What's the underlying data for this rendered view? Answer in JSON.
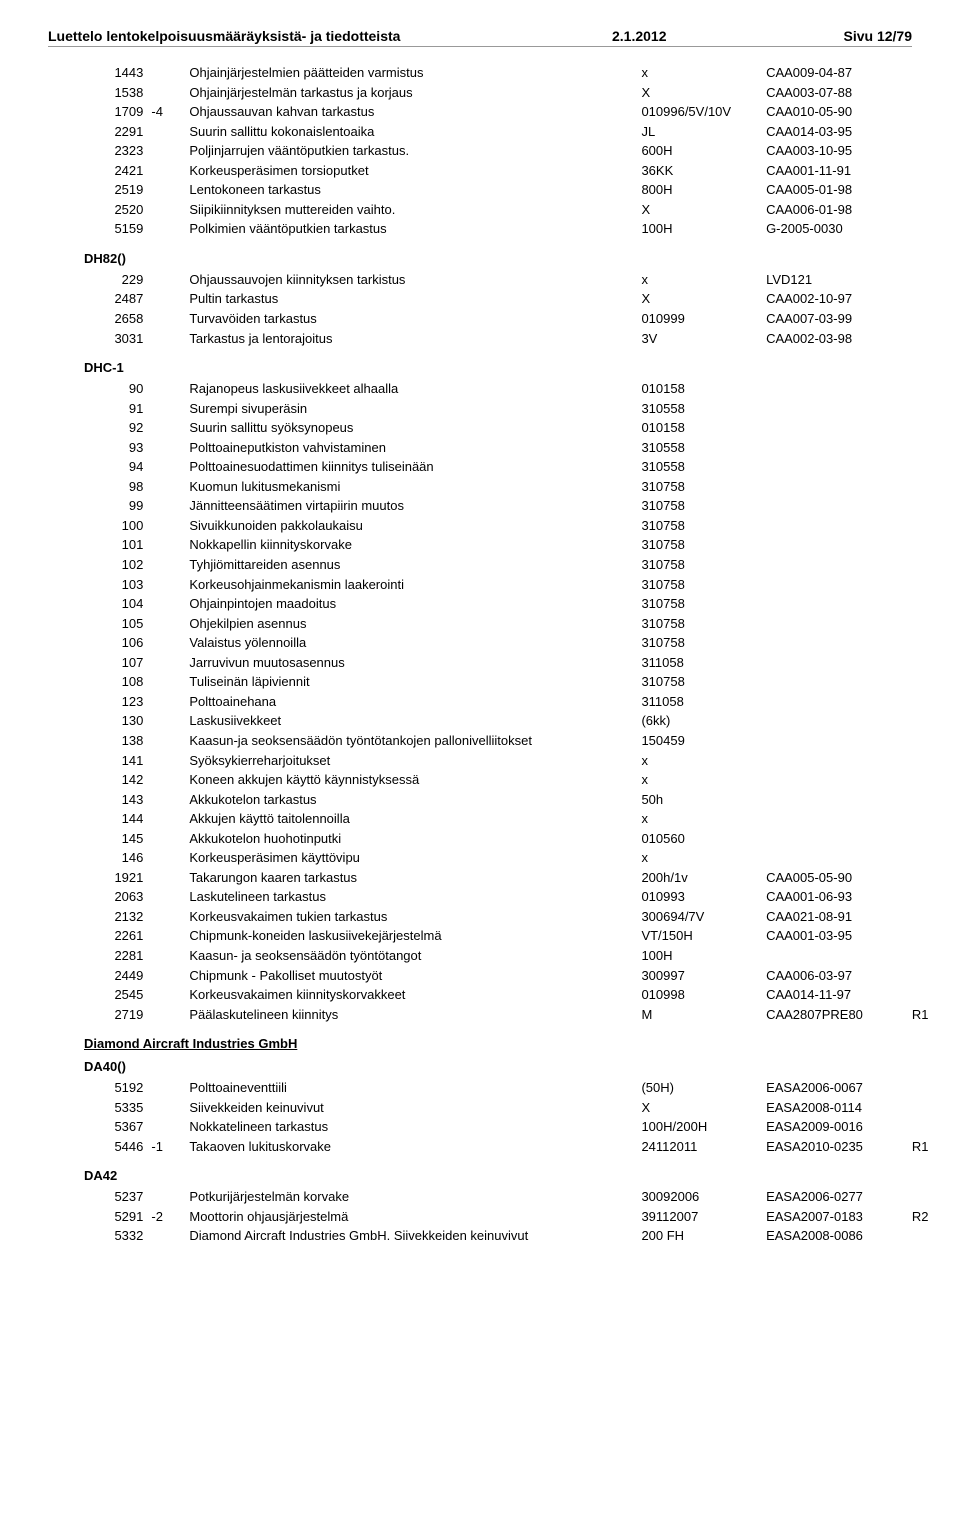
{
  "header": {
    "title": "Luettelo lentokelpoisuusmääräyksistä- ja tiedotteista",
    "date": "2.1.2012",
    "page": "Sivu 12/79"
  },
  "sections": [
    {
      "heading": null,
      "rows": [
        {
          "num": "1443",
          "rev": "",
          "desc": "Ohjainjärjestelmien päätteiden varmistus",
          "val": "x",
          "ref": "CAA009-04-87",
          "note": ""
        },
        {
          "num": "1538",
          "rev": "",
          "desc": "Ohjainjärjestelmän tarkastus ja korjaus",
          "val": "X",
          "ref": "CAA003-07-88",
          "note": ""
        },
        {
          "num": "1709",
          "rev": "-4",
          "desc": "Ohjaussauvan kahvan tarkastus",
          "val": "010996/5V/10V",
          "ref": "CAA010-05-90",
          "note": ""
        },
        {
          "num": "2291",
          "rev": "",
          "desc": "Suurin sallittu kokonaislentoaika",
          "val": "JL",
          "ref": "CAA014-03-95",
          "note": ""
        },
        {
          "num": "2323",
          "rev": "",
          "desc": "Poljinjarrujen vääntöputkien tarkastus.",
          "val": "600H",
          "ref": "CAA003-10-95",
          "note": ""
        },
        {
          "num": "2421",
          "rev": "",
          "desc": "Korkeusperäsimen torsioputket",
          "val": "36KK",
          "ref": "CAA001-11-91",
          "note": ""
        },
        {
          "num": "2519",
          "rev": "",
          "desc": "Lentokoneen tarkastus",
          "val": "800H",
          "ref": "CAA005-01-98",
          "note": ""
        },
        {
          "num": "2520",
          "rev": "",
          "desc": "Siipikiinnityksen muttereiden vaihto.",
          "val": "X",
          "ref": "CAA006-01-98",
          "note": ""
        },
        {
          "num": "5159",
          "rev": "",
          "desc": "Polkimien vääntöputkien tarkastus",
          "val": "100H",
          "ref": "G-2005-0030",
          "note": ""
        }
      ]
    },
    {
      "heading": "DH82()",
      "rows": [
        {
          "num": "229",
          "rev": "",
          "desc": "Ohjaussauvojen kiinnityksen tarkistus",
          "val": "x",
          "ref": "LVD121",
          "note": ""
        },
        {
          "num": "2487",
          "rev": "",
          "desc": "Pultin tarkastus",
          "val": "X",
          "ref": "CAA002-10-97",
          "note": ""
        },
        {
          "num": "2658",
          "rev": "",
          "desc": "Turvavöiden tarkastus",
          "val": "010999",
          "ref": "CAA007-03-99",
          "note": ""
        },
        {
          "num": "3031",
          "rev": "",
          "desc": "Tarkastus ja lentorajoitus",
          "val": "3V",
          "ref": "CAA002-03-98",
          "note": ""
        }
      ]
    },
    {
      "heading": "DHC-1",
      "rows": [
        {
          "num": "90",
          "rev": "",
          "desc": "Rajanopeus laskusiivekkeet alhaalla",
          "val": "010158",
          "ref": "",
          "note": ""
        },
        {
          "num": "91",
          "rev": "",
          "desc": "Surempi sivuperäsin",
          "val": "310558",
          "ref": "",
          "note": ""
        },
        {
          "num": "92",
          "rev": "",
          "desc": "Suurin sallittu syöksynopeus",
          "val": "010158",
          "ref": "",
          "note": ""
        },
        {
          "num": "93",
          "rev": "",
          "desc": "Polttoaineputkiston vahvistaminen",
          "val": "310558",
          "ref": "",
          "note": ""
        },
        {
          "num": "94",
          "rev": "",
          "desc": "Polttoainesuodattimen kiinnitys tuliseinään",
          "val": "310558",
          "ref": "",
          "note": ""
        },
        {
          "num": "98",
          "rev": "",
          "desc": "Kuomun lukitusmekanismi",
          "val": "310758",
          "ref": "",
          "note": ""
        },
        {
          "num": "99",
          "rev": "",
          "desc": "Jännitteensäätimen virtapiirin muutos",
          "val": "310758",
          "ref": "",
          "note": ""
        },
        {
          "num": "100",
          "rev": "",
          "desc": "Sivuikkunoiden pakkolaukaisu",
          "val": "310758",
          "ref": "",
          "note": ""
        },
        {
          "num": "101",
          "rev": "",
          "desc": "Nokkapellin kiinnityskorvake",
          "val": "310758",
          "ref": "",
          "note": ""
        },
        {
          "num": "102",
          "rev": "",
          "desc": "Tyhjiömittareiden asennus",
          "val": "310758",
          "ref": "",
          "note": ""
        },
        {
          "num": "103",
          "rev": "",
          "desc": "Korkeusohjainmekanismin laakerointi",
          "val": "310758",
          "ref": "",
          "note": ""
        },
        {
          "num": "104",
          "rev": "",
          "desc": "Ohjainpintojen maadoitus",
          "val": "310758",
          "ref": "",
          "note": ""
        },
        {
          "num": "105",
          "rev": "",
          "desc": "Ohjekilpien asennus",
          "val": "310758",
          "ref": "",
          "note": ""
        },
        {
          "num": "106",
          "rev": "",
          "desc": "Valaistus yölennoilla",
          "val": "310758",
          "ref": "",
          "note": ""
        },
        {
          "num": "107",
          "rev": "",
          "desc": "Jarruvivun muutosasennus",
          "val": "311058",
          "ref": "",
          "note": ""
        },
        {
          "num": "108",
          "rev": "",
          "desc": "Tuliseinän läpiviennit",
          "val": "310758",
          "ref": "",
          "note": ""
        },
        {
          "num": "123",
          "rev": "",
          "desc": "Polttoainehana",
          "val": "311058",
          "ref": "",
          "note": ""
        },
        {
          "num": "130",
          "rev": "",
          "desc": "Laskusiivekkeet",
          "val": "(6kk)",
          "ref": "",
          "note": ""
        },
        {
          "num": "138",
          "rev": "",
          "desc": "Kaasun-ja seoksensäädön työntötankojen pallonivelliitokset",
          "val": "150459",
          "ref": "",
          "note": ""
        },
        {
          "num": "141",
          "rev": "",
          "desc": "Syöksykierreharjoitukset",
          "val": "x",
          "ref": "",
          "note": ""
        },
        {
          "num": "142",
          "rev": "",
          "desc": "Koneen akkujen käyttö käynnistyksessä",
          "val": "x",
          "ref": "",
          "note": ""
        },
        {
          "num": "143",
          "rev": "",
          "desc": "Akkukotelon tarkastus",
          "val": "50h",
          "ref": "",
          "note": ""
        },
        {
          "num": "144",
          "rev": "",
          "desc": "Akkujen käyttö taitolennoilla",
          "val": "x",
          "ref": "",
          "note": ""
        },
        {
          "num": "145",
          "rev": "",
          "desc": "Akkukotelon huohotinputki",
          "val": "010560",
          "ref": "",
          "note": ""
        },
        {
          "num": "146",
          "rev": "",
          "desc": "Korkeusperäsimen käyttövipu",
          "val": "x",
          "ref": "",
          "note": ""
        },
        {
          "num": "1921",
          "rev": "",
          "desc": "Takarungon kaaren tarkastus",
          "val": "200h/1v",
          "ref": "CAA005-05-90",
          "note": ""
        },
        {
          "num": "2063",
          "rev": "",
          "desc": "Laskutelineen tarkastus",
          "val": "010993",
          "ref": "CAA001-06-93",
          "note": ""
        },
        {
          "num": "2132",
          "rev": "",
          "desc": "Korkeusvakaimen tukien tarkastus",
          "val": "300694/7V",
          "ref": "CAA021-08-91",
          "note": ""
        },
        {
          "num": "2261",
          "rev": "",
          "desc": "Chipmunk-koneiden laskusiivekejärjestelmä",
          "val": "VT/150H",
          "ref": "CAA001-03-95",
          "note": ""
        },
        {
          "num": "2281",
          "rev": "",
          "desc": "Kaasun- ja seoksensäädön työntötangot",
          "val": "100H",
          "ref": "",
          "note": ""
        },
        {
          "num": "2449",
          "rev": "",
          "desc": "Chipmunk - Pakolliset muutostyöt",
          "val": "300997",
          "ref": "CAA006-03-97",
          "note": ""
        },
        {
          "num": "2545",
          "rev": "",
          "desc": "Korkeusvakaimen kiinnityskorvakkeet",
          "val": "010998",
          "ref": "CAA014-11-97",
          "note": ""
        },
        {
          "num": "2719",
          "rev": "",
          "desc": "Päälaskutelineen kiinnitys",
          "val": "M",
          "ref": "CAA2807PRE80",
          "note": "R1"
        }
      ]
    },
    {
      "heading": "Diamond Aircraft Industries GmbH",
      "underline": true,
      "rows": []
    },
    {
      "heading": "DA40()",
      "rows": [
        {
          "num": "5192",
          "rev": "",
          "desc": "Polttoaineventtiili",
          "val": "(50H)",
          "ref": "EASA2006-0067",
          "note": ""
        },
        {
          "num": "5335",
          "rev": "",
          "desc": "Siivekkeiden keinuvivut",
          "val": "X",
          "ref": "EASA2008-0114",
          "note": ""
        },
        {
          "num": "5367",
          "rev": "",
          "desc": "Nokkatelineen tarkastus",
          "val": "100H/200H",
          "ref": "EASA2009-0016",
          "note": ""
        },
        {
          "num": "5446",
          "rev": "-1",
          "desc": "Takaoven lukituskorvake",
          "val": "24112011",
          "ref": "EASA2010-0235",
          "note": "R1"
        }
      ]
    },
    {
      "heading": "DA42",
      "rows": [
        {
          "num": "5237",
          "rev": "",
          "desc": "Potkurijärjestelmän korvake",
          "val": "30092006",
          "ref": "EASA2006-0277",
          "note": ""
        },
        {
          "num": "5291",
          "rev": "-2",
          "desc": "Moottorin ohjausjärjestelmä",
          "val": "39112007",
          "ref": "EASA2007-0183",
          "note": "R2"
        },
        {
          "num": "5332",
          "rev": "",
          "desc": "Diamond Aircraft Industries GmbH. Siivekkeiden keinuvivut",
          "val": "200 FH",
          "ref": "EASA2008-0086",
          "note": ""
        }
      ]
    }
  ]
}
